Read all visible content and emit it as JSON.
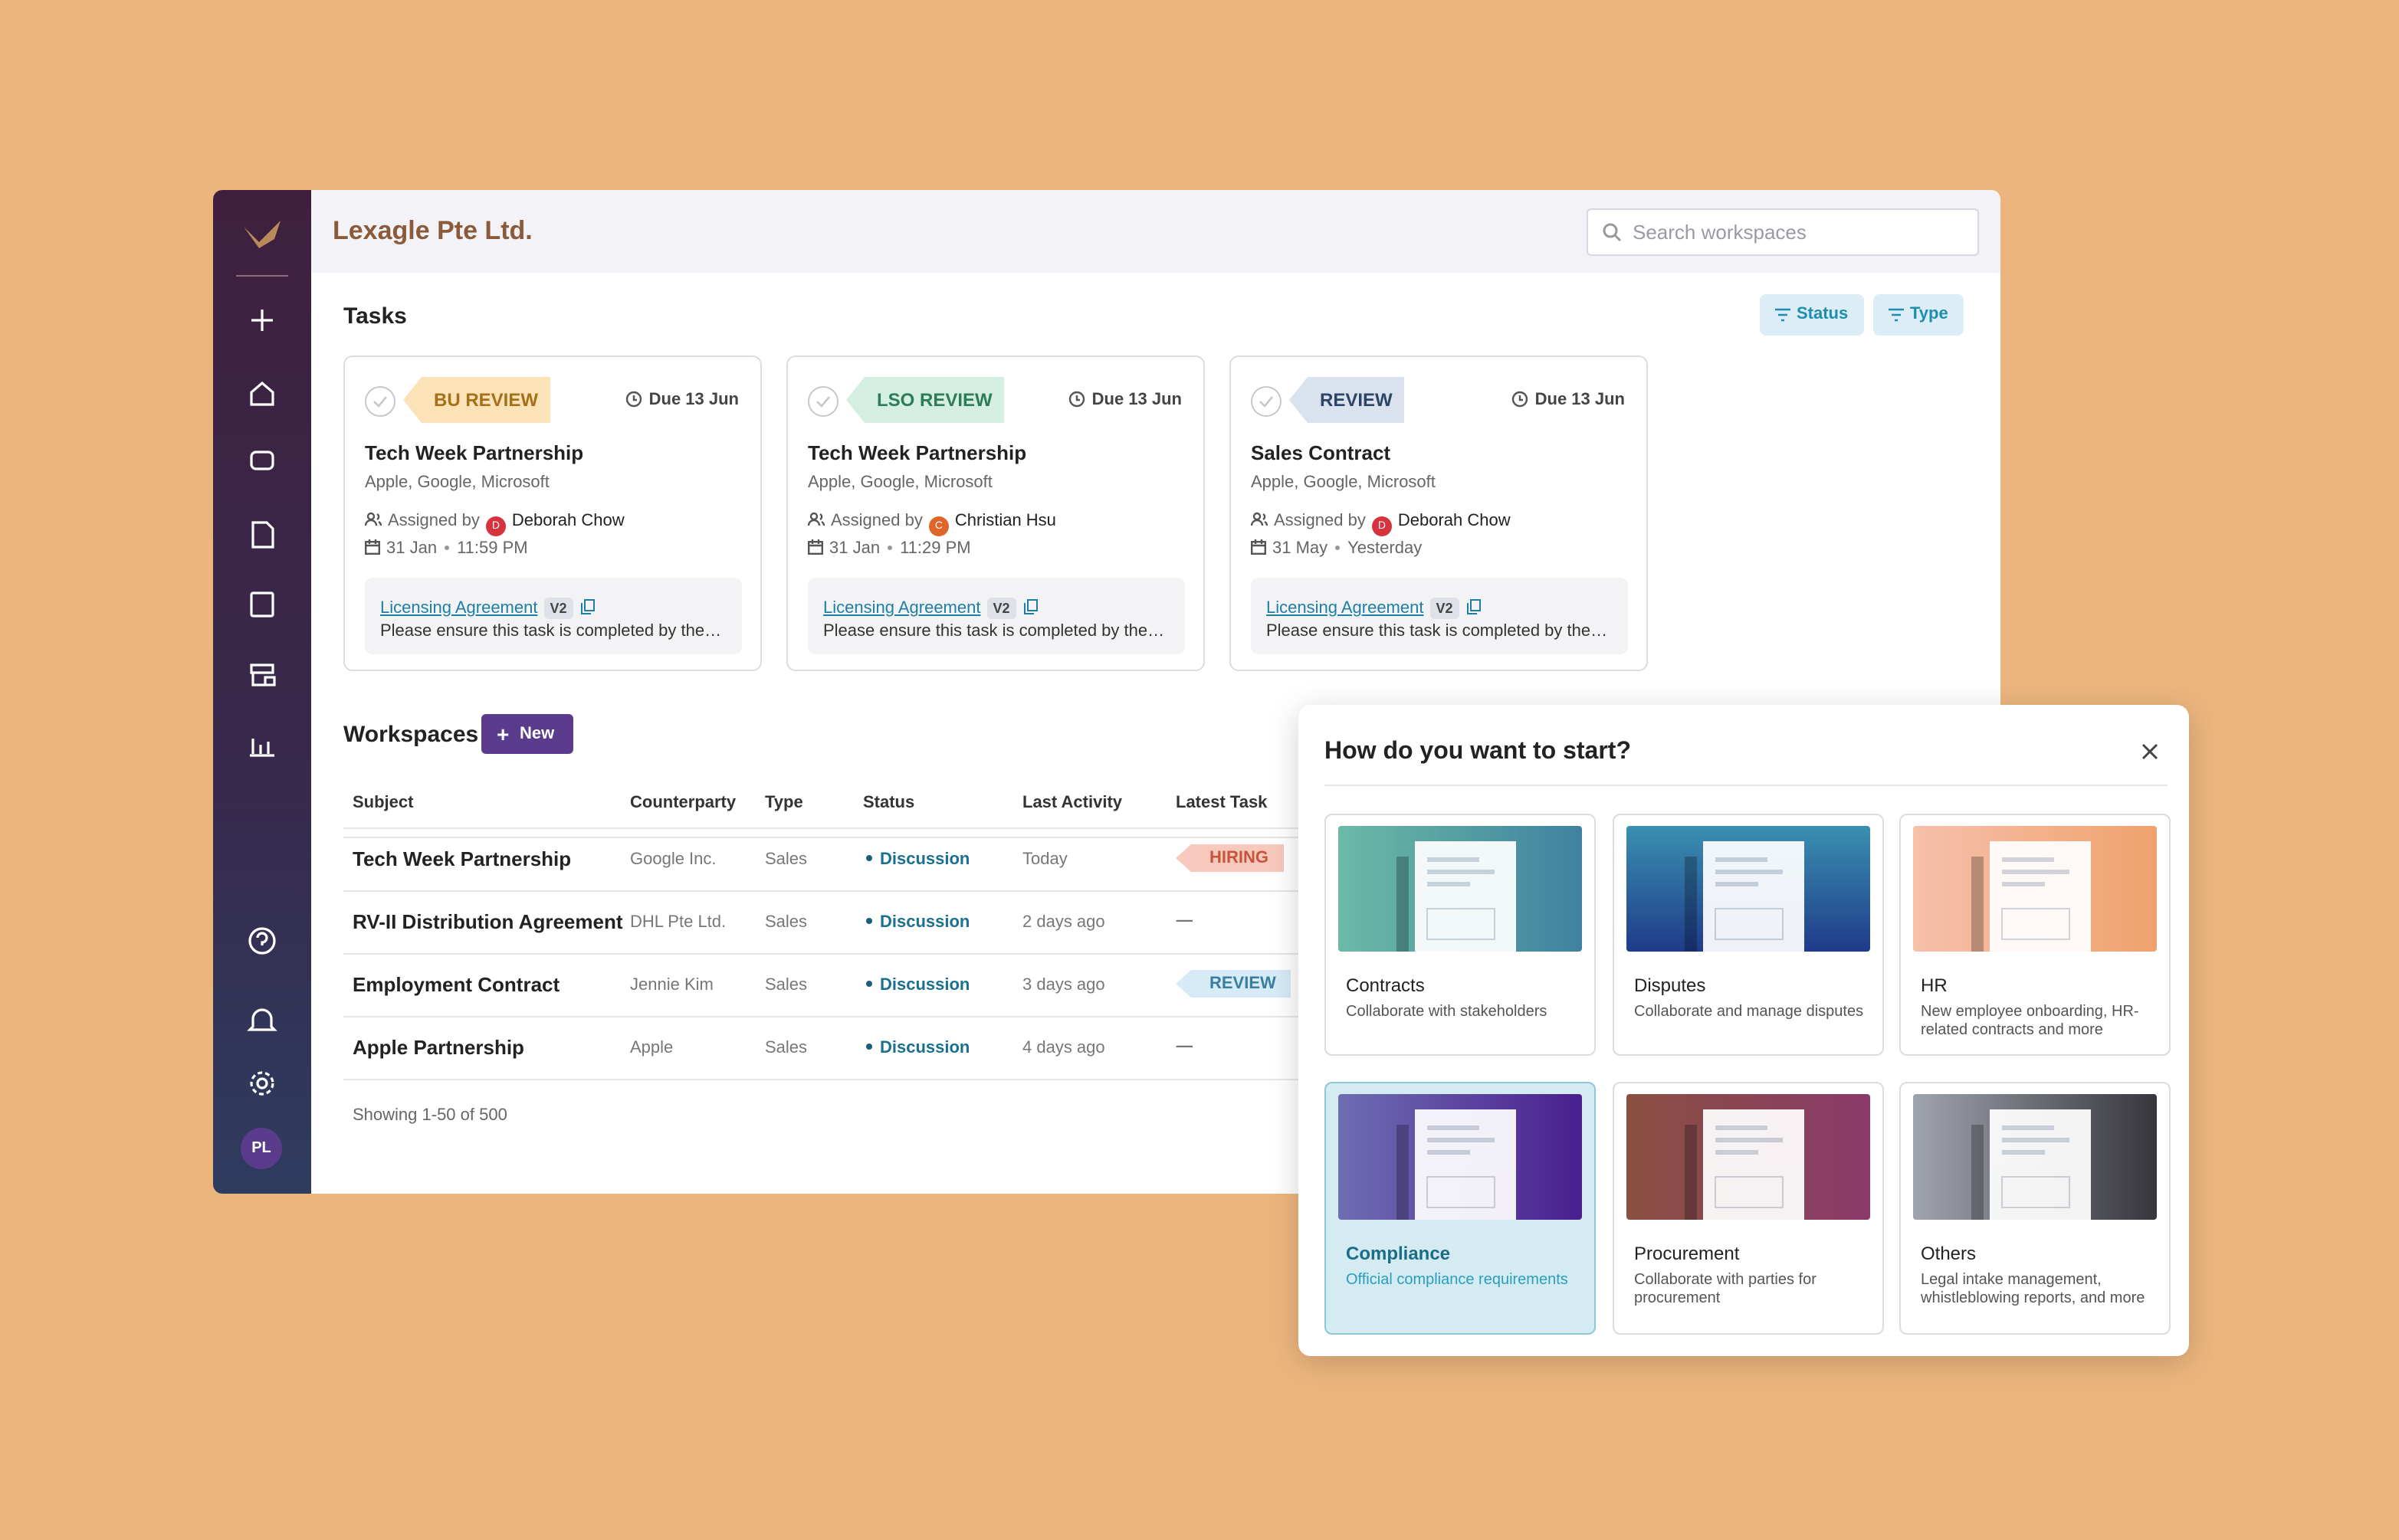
{
  "header": {
    "company": "Lexagle Pte Ltd.",
    "search_placeholder": "Search workspaces"
  },
  "sidebar": {
    "user_initials": "PL"
  },
  "tasks": {
    "title": "Tasks",
    "filters": [
      "Status",
      "Type"
    ],
    "cards": [
      {
        "tag": "BU REVIEW",
        "due": "Due 13 Jun",
        "title": "Tech Week Partnership",
        "parties": "Apple, Google, Microsoft",
        "assigned_label": "Assigned by",
        "assignee_initial": "D",
        "assignee": "Deborah Chow",
        "date": "31 Jan",
        "time": "11:59 PM",
        "document": "Licensing Agreement",
        "version": "V2",
        "note": "Please ensure this task is completed by the…"
      },
      {
        "tag": "LSO REVIEW",
        "due": "Due 13 Jun",
        "title": "Tech Week Partnership",
        "parties": "Apple, Google, Microsoft",
        "assigned_label": "Assigned by",
        "assignee_initial": "C",
        "assignee": "Christian Hsu",
        "date": "31 Jan",
        "time": "11:29 PM",
        "document": "Licensing Agreement",
        "version": "V2",
        "note": "Please ensure this task is completed by the…"
      },
      {
        "tag": "REVIEW",
        "due": "Due 13 Jun",
        "title": "Sales Contract",
        "parties": "Apple, Google, Microsoft",
        "assigned_label": "Assigned by",
        "assignee_initial": "D",
        "assignee": "Deborah Chow",
        "date": "31 May",
        "time": "Yesterday",
        "document": "Licensing Agreement",
        "version": "V2",
        "note": "Please ensure this task is completed by the…"
      }
    ]
  },
  "workspaces": {
    "title": "Workspaces",
    "new_button": "New",
    "columns": [
      "Subject",
      "Counterparty",
      "Type",
      "Status",
      "Last Activity",
      "Latest Task"
    ],
    "rows": [
      [
        "Tech Week Partnership",
        "Google Inc.",
        "Sales",
        "Discussion",
        "Today",
        "HIRING"
      ],
      [
        "RV-II Distribution Agreement",
        "DHL Pte Ltd.",
        "Sales",
        "Discussion",
        "2 days ago",
        "—"
      ],
      [
        "Employment Contract",
        "Jennie Kim",
        "Sales",
        "Discussion",
        "3 days ago",
        "REVIEW"
      ],
      [
        "Apple Partnership",
        "Apple",
        "Sales",
        "Discussion",
        "4 days ago",
        "—"
      ]
    ],
    "footer": "Showing 1-50 of 500"
  },
  "modal": {
    "title": "How do you want to start?",
    "options": [
      {
        "title": "Contracts",
        "description": "Collaborate with stakeholders"
      },
      {
        "title": "Disputes",
        "description": "Collaborate and manage disputes"
      },
      {
        "title": "HR",
        "description": "New employee onboarding, HR-related contracts and more"
      },
      {
        "title": "Compliance",
        "description": "Official compliance requirements"
      },
      {
        "title": "Procurement",
        "description": "Collaborate with parties for procurement"
      },
      {
        "title": "Others",
        "description": "Legal intake management, whistleblowing reports, and more"
      }
    ]
  }
}
